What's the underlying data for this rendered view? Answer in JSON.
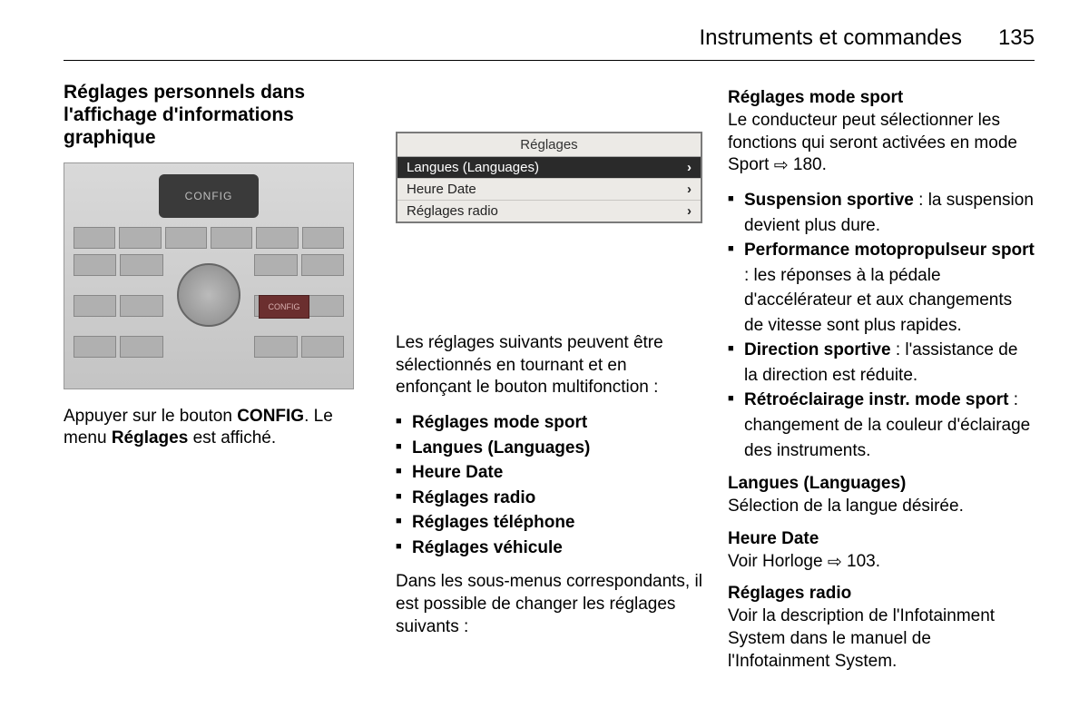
{
  "header": {
    "title": "Instruments et commandes",
    "page": "135"
  },
  "col1": {
    "heading": "Réglages personnels dans l'affichage d'informations graphique",
    "console_label": "CONFIG",
    "config_btn_label": "CONFIG",
    "text_prefix": "Appuyer sur le bouton ",
    "config_word": "CONFIG",
    "text_mid": ". Le menu ",
    "reglages_word": "Réglages",
    "text_suffix": " est affiché."
  },
  "col2": {
    "menu": {
      "title": "Réglages",
      "rows": [
        {
          "label": "Langues (Languages)",
          "selected": true
        },
        {
          "label": "Heure Date",
          "selected": false
        },
        {
          "label": "Réglages radio",
          "selected": false
        }
      ]
    },
    "intro": "Les réglages suivants peuvent être sélectionnés en tournant et en enfonçant le bouton multifonction :",
    "bullets": [
      "Réglages mode sport",
      "Langues (Languages)",
      "Heure Date",
      "Réglages radio",
      "Réglages téléphone",
      "Réglages véhicule"
    ],
    "outro": "Dans les sous-menus correspondants, il est possible de changer les réglages suivants :"
  },
  "col3": {
    "sport_heading": "Réglages mode sport",
    "sport_text_a": "Le conducteur peut sélectionner les fonctions qui seront activées en mode Sport ",
    "sport_ref": "180.",
    "sport_bullets": [
      {
        "lead": "Suspension sportive",
        "rest": " : la suspension devient plus dure."
      },
      {
        "lead": "Performance motopropulseur sport",
        "rest": " : les réponses à la pédale d'accélérateur et aux changements de vitesse sont plus rapides."
      },
      {
        "lead": "Direction sportive",
        "rest": " : l'assistance de la direction est réduite."
      },
      {
        "lead": "Rétroéclairage instr. mode sport",
        "rest": " : changement de la couleur d'éclairage des instruments."
      }
    ],
    "lang_heading": "Langues (Languages)",
    "lang_text": "Sélection de la langue désirée.",
    "date_heading": "Heure Date",
    "date_text_a": "Voir Horloge ",
    "date_ref": "103.",
    "radio_heading": "Réglages radio",
    "radio_text": "Voir la description de l'Infotainment System dans le manuel de l'Infotainment System."
  },
  "ref_symbol": "⇨"
}
